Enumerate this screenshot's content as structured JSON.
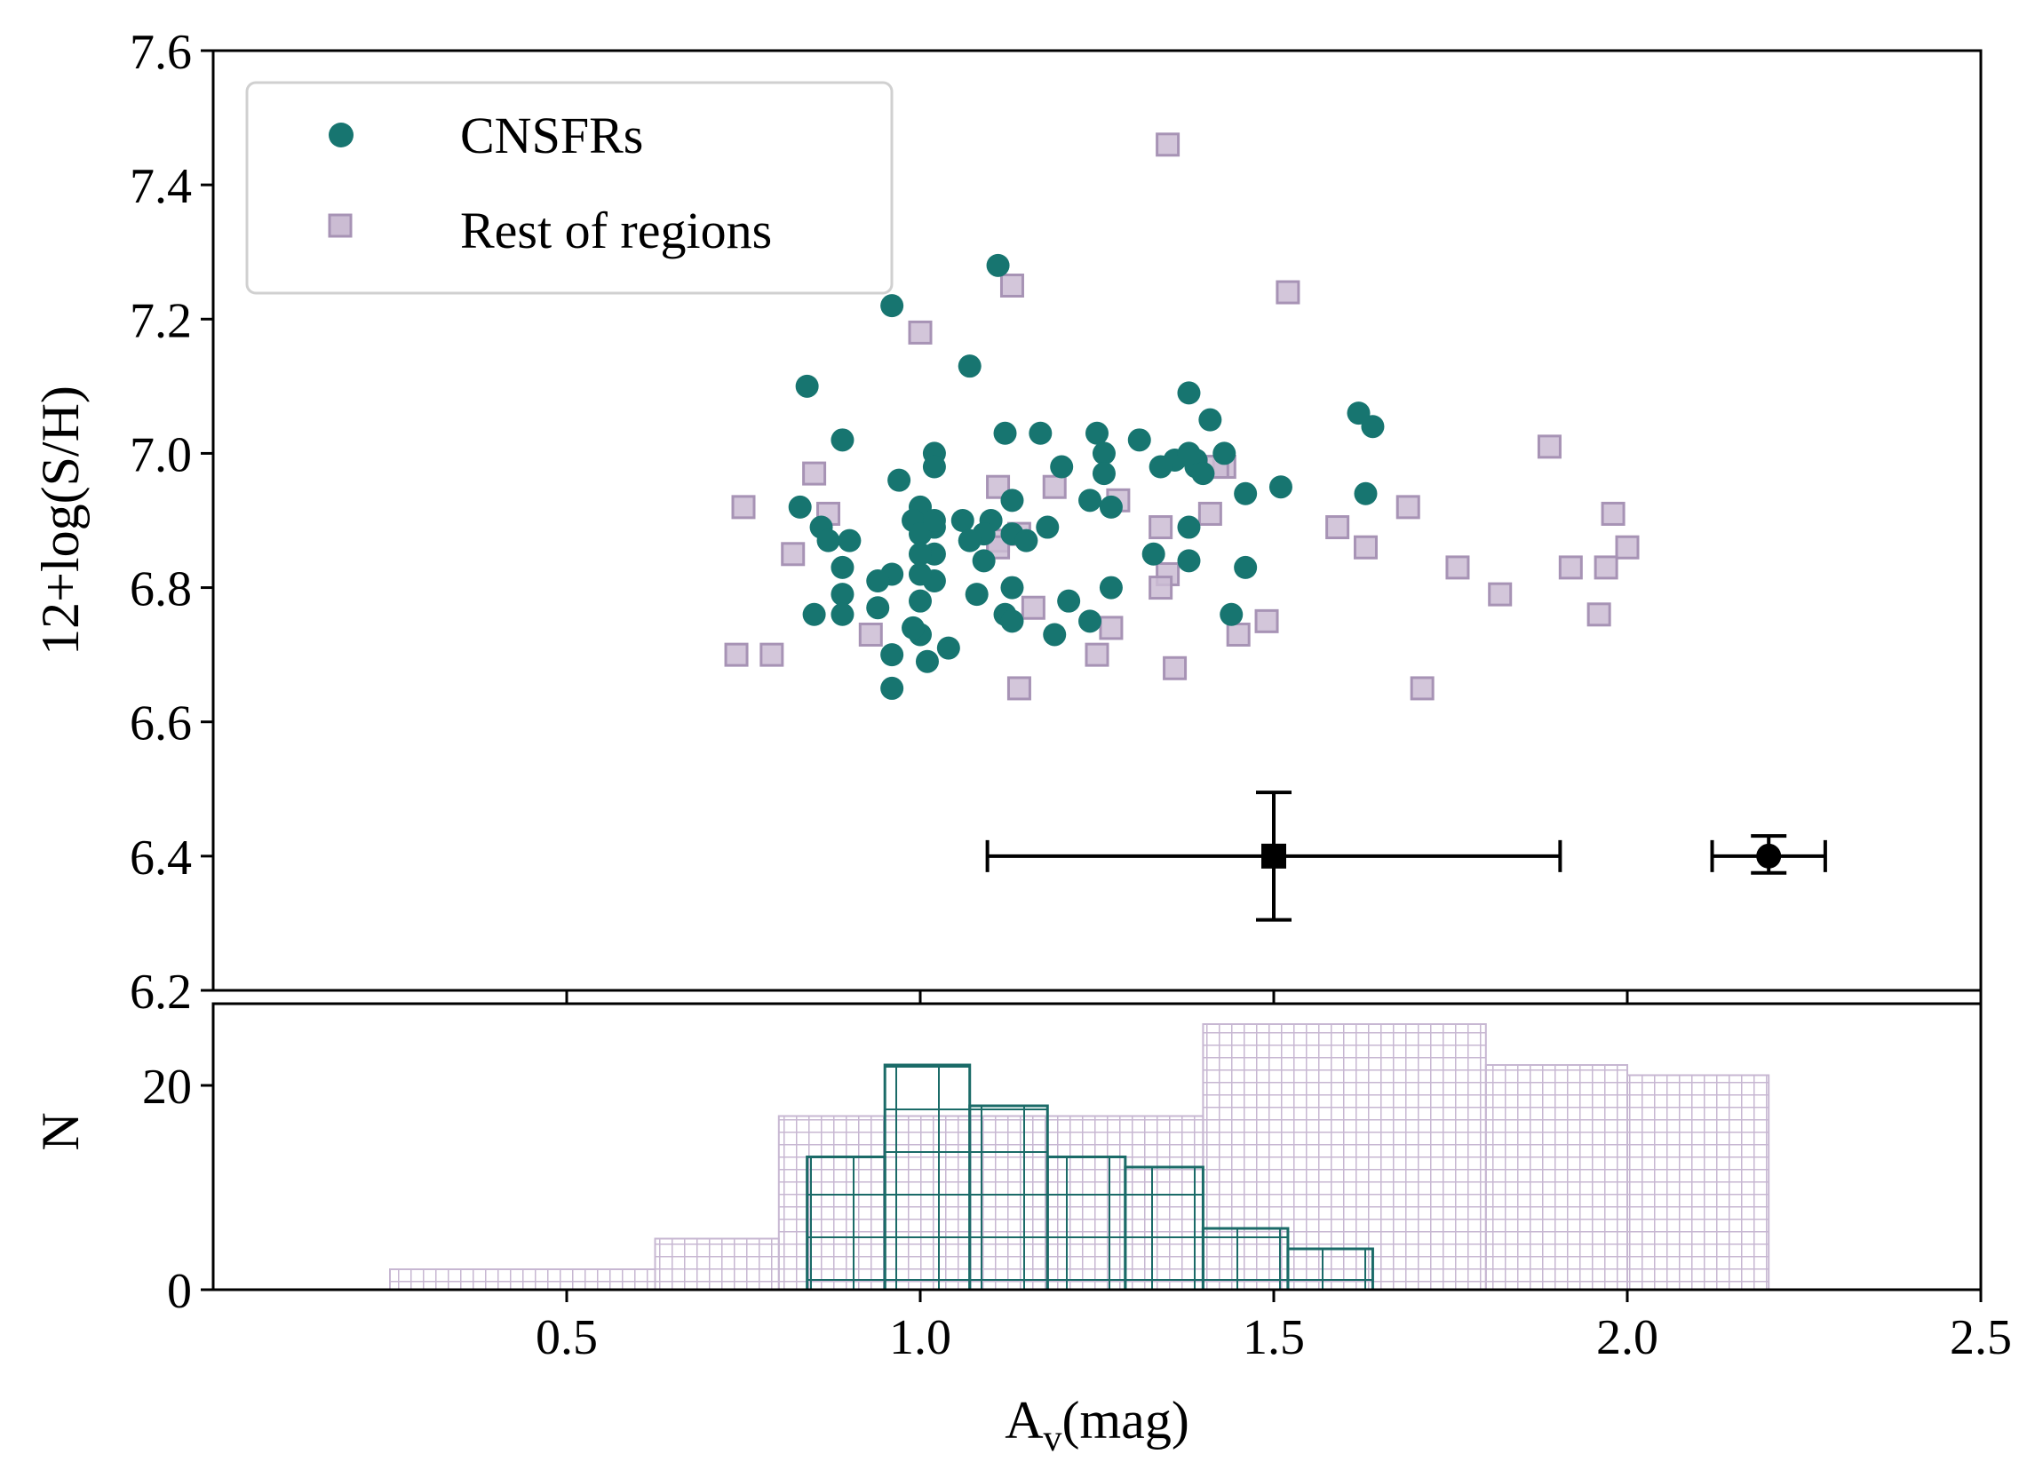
{
  "chart_data": [
    {
      "type": "scatter",
      "panel": "top",
      "ylabel": "12+log(S/H)",
      "xlim": [
        0,
        2.5
      ],
      "ylim": [
        6.2,
        7.6
      ],
      "yticks": [
        "6.2",
        "6.4",
        "6.6",
        "6.8",
        "7.0",
        "7.2",
        "7.4",
        "7.6"
      ],
      "colors": {
        "cnsfr": "#177570",
        "rest_fill": "#cbbcd3",
        "rest_edge": "#a793b5",
        "error": "#000000"
      },
      "legend": {
        "location": "top-left",
        "entries": [
          "CNSFRs",
          "Rest of regions"
        ]
      },
      "series": [
        {
          "name": "CNSFRs",
          "marker": "circle",
          "x": [
            1.11,
            0.96,
            1.07,
            0.84,
            1.38,
            1.62,
            1.64,
            0.89,
            1.12,
            1.17,
            1.25,
            1.31,
            1.41,
            1.02,
            1.26,
            1.36,
            1.39,
            1.43,
            1.2,
            0.97,
            1.02,
            1.26,
            1.34,
            1.39,
            1.63,
            1.46,
            1.51,
            0.83,
            1.13,
            1.24,
            1.27,
            1.0,
            1.06,
            1.1,
            0.99,
            1.18,
            0.86,
            1.38,
            1.02,
            1.09,
            1.0,
            1.13,
            0.87,
            0.9,
            1.15,
            1.33,
            1.02,
            1.09,
            1.38,
            1.0,
            1.46,
            0.89,
            0.96,
            0.94,
            1.13,
            1.02,
            0.89,
            1.08,
            1.27,
            1.0,
            1.21,
            1.44,
            0.94,
            1.12,
            0.85,
            0.89,
            1.24,
            1.0,
            1.19,
            0.99,
            1.04,
            0.96,
            1.01,
            0.96,
            1.13,
            1.4,
            1.38,
            1.07,
            1.0,
            1.02
          ],
          "y": [
            7.28,
            7.22,
            7.13,
            7.1,
            7.09,
            7.06,
            7.04,
            7.02,
            7.03,
            7.03,
            7.03,
            7.02,
            7.05,
            7.0,
            7.0,
            6.99,
            6.99,
            7.0,
            6.98,
            6.96,
            6.98,
            6.97,
            6.98,
            6.98,
            6.94,
            6.94,
            6.95,
            6.92,
            6.93,
            6.93,
            6.92,
            6.92,
            6.9,
            6.9,
            6.9,
            6.89,
            6.89,
            6.89,
            6.89,
            6.88,
            6.88,
            6.88,
            6.87,
            6.87,
            6.87,
            6.85,
            6.85,
            6.84,
            6.84,
            6.85,
            6.83,
            6.83,
            6.82,
            6.81,
            6.8,
            6.81,
            6.79,
            6.79,
            6.8,
            6.78,
            6.78,
            6.76,
            6.77,
            6.76,
            6.76,
            6.76,
            6.75,
            6.73,
            6.73,
            6.74,
            6.71,
            6.7,
            6.69,
            6.65,
            6.75,
            6.97,
            7.0,
            6.87,
            6.82,
            6.9
          ]
        },
        {
          "name": "Rest of regions",
          "marker": "square",
          "x": [
            1.35,
            1.52,
            1.13,
            1.0,
            1.89,
            0.85,
            1.11,
            1.19,
            0.75,
            1.43,
            1.28,
            1.41,
            1.69,
            0.87,
            1.98,
            2.0,
            1.59,
            0.82,
            1.34,
            1.63,
            1.11,
            1.76,
            1.97,
            1.35,
            1.92,
            1.34,
            1.82,
            1.96,
            1.49,
            1.27,
            1.45,
            0.93,
            1.25,
            1.36,
            1.14,
            1.71,
            0.74,
            0.79,
            1.14,
            1.11,
            1.42,
            1.16
          ],
          "y": [
            7.46,
            7.24,
            7.25,
            7.18,
            7.01,
            6.97,
            6.95,
            6.95,
            6.92,
            6.98,
            6.93,
            6.91,
            6.92,
            6.91,
            6.91,
            6.86,
            6.89,
            6.85,
            6.89,
            6.86,
            6.87,
            6.83,
            6.83,
            6.82,
            6.83,
            6.8,
            6.79,
            6.76,
            6.75,
            6.74,
            6.73,
            6.73,
            6.7,
            6.68,
            6.65,
            6.65,
            6.7,
            6.7,
            6.88,
            6.86,
            6.98,
            6.77
          ]
        }
      ],
      "error_bars": [
        {
          "marker": "square",
          "x": 1.5,
          "y": 6.4,
          "xerr_low": 1.095,
          "xerr_high": 1.905,
          "yerr_low": 6.305,
          "yerr_high": 6.495
        },
        {
          "marker": "circle",
          "x": 2.2,
          "y": 6.4,
          "xerr_low": 2.12,
          "xerr_high": 2.28,
          "yerr_low": 6.375,
          "yerr_high": 6.43
        }
      ]
    },
    {
      "type": "histogram",
      "panel": "bottom",
      "xlabel": "A",
      "xlabel_sub": "v",
      "xlabel_tail": "(mag)",
      "ylabel": "N",
      "xlim": [
        0,
        2.5
      ],
      "ylim": [
        0,
        28
      ],
      "xticks": [
        "0.5",
        "1.0",
        "1.5",
        "2.0",
        "2.5"
      ],
      "yticks": [
        "0",
        "20"
      ],
      "series": [
        {
          "name": "Rest of regions",
          "hatch": "grid",
          "edges": [
            0.25,
            0.625,
            0.8,
            1.4,
            1.8,
            2.0,
            2.2
          ],
          "counts": [
            2,
            5,
            17,
            26,
            22,
            21
          ]
        },
        {
          "name": "CNSFRs",
          "hatch": "grid",
          "edges": [
            0.84,
            0.95,
            1.07,
            1.18,
            1.29,
            1.4,
            1.52,
            1.64
          ],
          "counts": [
            13,
            22,
            18,
            13,
            12,
            6,
            4
          ]
        }
      ]
    }
  ]
}
